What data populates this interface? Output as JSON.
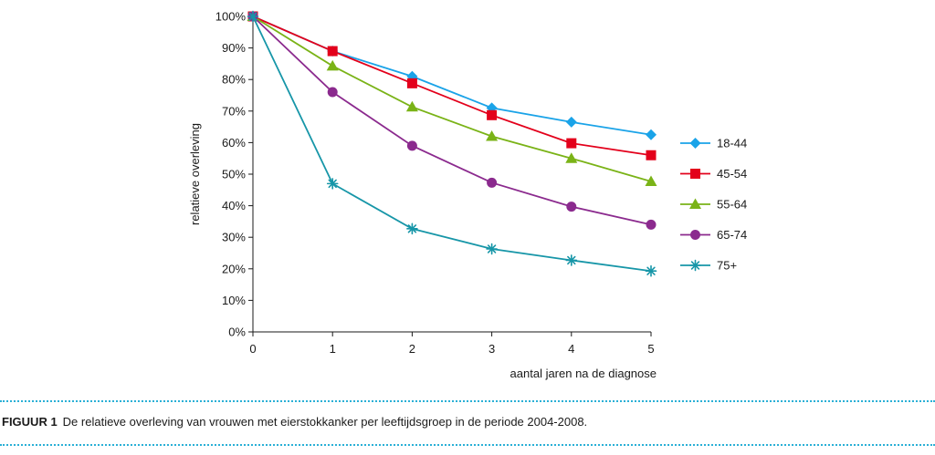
{
  "chart_data": {
    "type": "line",
    "title": "",
    "xlabel": "aantal jaren na de diagnose",
    "ylabel": "relatieve overleving",
    "x": [
      0,
      1,
      2,
      3,
      4,
      5
    ],
    "xticks": [
      "0",
      "1",
      "2",
      "3",
      "4",
      "5"
    ],
    "yticks": [
      "0%",
      "10%",
      "20%",
      "30%",
      "40%",
      "50%",
      "60%",
      "70%",
      "80%",
      "90%",
      "100%"
    ],
    "ylim": [
      0,
      100
    ],
    "xlim": [
      0,
      5
    ],
    "grid": false,
    "legend_position": "right",
    "series": [
      {
        "name": "18-44",
        "color": "#1aa3e8",
        "marker": "diamond",
        "values": [
          100,
          89,
          81,
          71,
          66.5,
          62.5
        ]
      },
      {
        "name": "45-54",
        "color": "#e3001b",
        "marker": "square",
        "values": [
          100,
          89,
          78.8,
          68.7,
          59.8,
          56
        ]
      },
      {
        "name": "55-64",
        "color": "#7ab317",
        "marker": "triangle",
        "values": [
          100,
          84.3,
          71.3,
          62,
          55,
          47.7
        ]
      },
      {
        "name": "65-74",
        "color": "#8b2a8e",
        "marker": "circle",
        "values": [
          100,
          76,
          59,
          47.3,
          39.7,
          34
        ]
      },
      {
        "name": "75+",
        "color": "#1796a8",
        "marker": "asterisk",
        "values": [
          100,
          47,
          32.7,
          26.3,
          22.7,
          19.3
        ]
      }
    ]
  },
  "caption": {
    "label": "FIGUUR 1",
    "text": "De relatieve overleving van vrouwen met eierstokkanker per leeftijdsgroep in de periode 2004-2008."
  }
}
